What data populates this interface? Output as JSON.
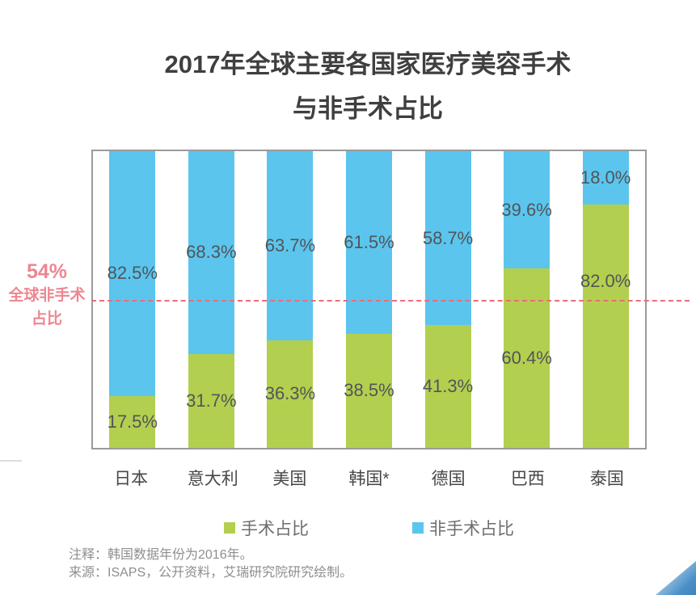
{
  "page": {
    "title_line1": "2017年全球主要各国家医疗美容手术",
    "title_line2": "与非手术占比"
  },
  "annotation": {
    "line1": "54%",
    "line2": "全球非手术",
    "line3": "占比",
    "color": "#ec8792"
  },
  "chart_data": {
    "type": "bar",
    "stacked": true,
    "title": "2017年全球主要各国家医疗美容手术与非手术占比",
    "categories": [
      "日本",
      "意大利",
      "美国",
      "韩国*",
      "德国",
      "巴西",
      "泰国"
    ],
    "series": [
      {
        "name": "手术占比",
        "color": "#b3cf4f",
        "values": [
          17.5,
          31.7,
          36.3,
          38.5,
          41.3,
          60.4,
          82.0
        ]
      },
      {
        "name": "非手术占比",
        "color": "#5bc5ee",
        "values": [
          82.5,
          68.3,
          63.7,
          61.5,
          58.7,
          39.6,
          18.0
        ]
      }
    ],
    "value_suffix": "%",
    "ylim": [
      0,
      100
    ],
    "grid": false,
    "legend_position": "bottom",
    "reference_line": {
      "label": "54% 全球非手术占比",
      "style": "dashed",
      "color": "#e96d79",
      "position_pct_from_bottom": 49.8
    },
    "surgical_label_pos": [
      8.75,
      15.85,
      18.15,
      19.25,
      20.65,
      30.2,
      56.0
    ],
    "nonsurgical_label_pos": [
      58.75,
      65.85,
      68.15,
      69.25,
      70.65,
      80.2,
      91.0
    ]
  },
  "footer": {
    "note": "注释：韩国数据年份为2016年。",
    "source": "来源：ISAPS，公开资料，艾瑞研究院研究绘制。"
  }
}
